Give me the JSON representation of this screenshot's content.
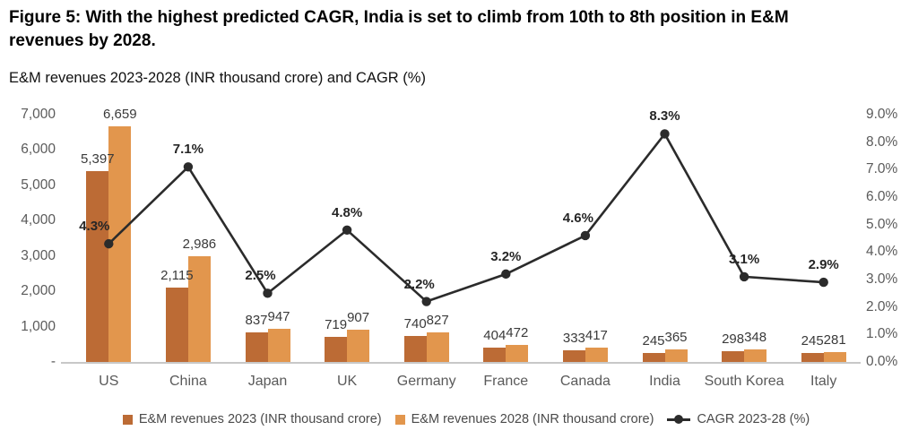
{
  "title": "Figure 5: With the highest predicted CAGR, India is set to climb from 10th to 8th position in E&M revenues by 2028.",
  "subtitle": "E&M revenues 2023-2028 (INR thousand crore) and CAGR (%)",
  "colors": {
    "bar_2023": "#BC6B35",
    "bar_2028": "#E2964D",
    "cagr_line": "#2B2B2B",
    "axis_text": "#5A5A5A",
    "data_label_text": "#3A3A3A",
    "baseline": "#C8C8C8"
  },
  "chart_data": {
    "type": "bar",
    "subtype": "grouped-bar-with-line",
    "title": "E&M revenues 2023-2028 (INR thousand crore) and CAGR (%)",
    "categories": [
      "US",
      "China",
      "Japan",
      "UK",
      "Germany",
      "France",
      "Canada",
      "India",
      "South Korea",
      "Italy"
    ],
    "series": [
      {
        "name": "E&M revenues 2023 (INR thousand crore)",
        "type": "bar",
        "color": "#BC6B35",
        "values": [
          5397,
          2115,
          837,
          719,
          740,
          404,
          333,
          245,
          298,
          245
        ],
        "labels": [
          "5,397",
          "2,115",
          "837",
          "719",
          "740",
          "404",
          "333",
          "245",
          "298",
          "245"
        ]
      },
      {
        "name": "E&M revenues 2028 (INR thousand crore)",
        "type": "bar",
        "color": "#E2964D",
        "values": [
          6659,
          2986,
          947,
          907,
          827,
          472,
          417,
          365,
          348,
          281
        ],
        "labels": [
          "6,659",
          "2,986",
          "947",
          "907",
          "827",
          "472",
          "417",
          "365",
          "348",
          "281"
        ]
      },
      {
        "name": "CAGR 2023-28 (%)",
        "type": "line",
        "color": "#2B2B2B",
        "values": [
          4.3,
          7.1,
          2.5,
          4.8,
          2.2,
          3.2,
          4.6,
          8.3,
          3.1,
          2.9
        ],
        "labels": [
          "4.3%",
          "7.1%",
          "2.5%",
          "4.8%",
          "2.2%",
          "3.2%",
          "4.6%",
          "8.3%",
          "3.1%",
          "2.9%"
        ]
      }
    ],
    "left_axis": {
      "min": 0,
      "max": 7000,
      "tick_values": [
        7000,
        6000,
        5000,
        4000,
        3000,
        2000,
        1000,
        0
      ],
      "tick_labels": [
        "7,000",
        "6,000",
        "5,000",
        "4,000",
        "3,000",
        "2,000",
        "1,000",
        "-"
      ]
    },
    "right_axis": {
      "min": 0,
      "max": 9,
      "tick_values": [
        9,
        8,
        7,
        6,
        5,
        4,
        3,
        2,
        1,
        0
      ],
      "tick_labels": [
        "9.0%",
        "8.0%",
        "7.0%",
        "6.0%",
        "5.0%",
        "4.0%",
        "3.0%",
        "2.0%",
        "1.0%",
        "0.0%"
      ]
    },
    "grid": false,
    "legend_position": "bottom",
    "legend": [
      {
        "label": "E&M revenues 2023 (INR thousand crore)",
        "marker": "square",
        "color": "#BC6B35"
      },
      {
        "label": "E&M revenues 2028 (INR thousand crore)",
        "marker": "square",
        "color": "#E2964D"
      },
      {
        "label": "CAGR 2023-28 (%)",
        "marker": "line-circle",
        "color": "#2B2B2B"
      }
    ]
  }
}
